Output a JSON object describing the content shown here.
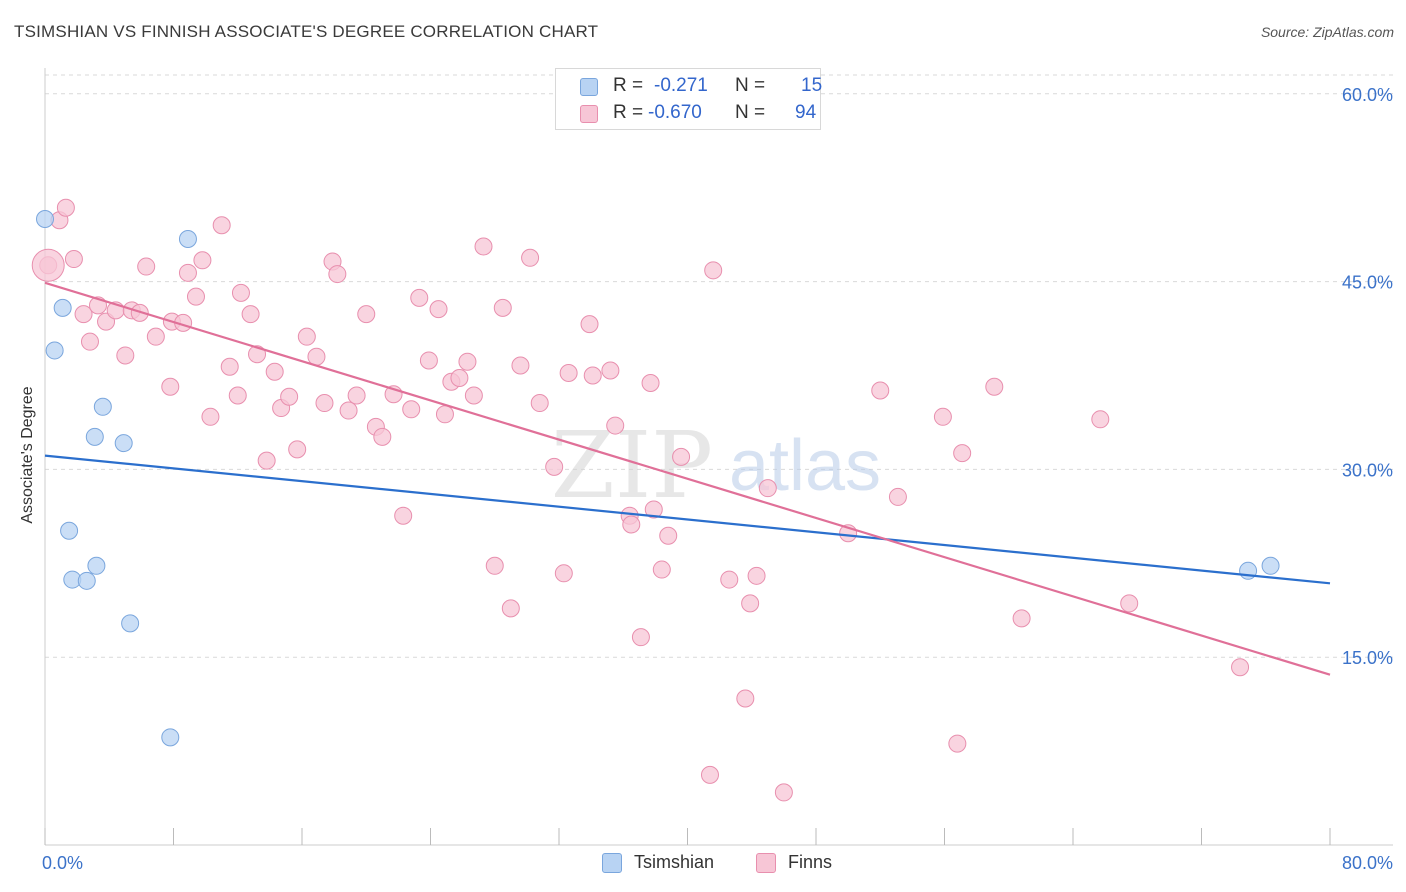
{
  "title": "TSIMSHIAN VS FINNISH ASSOCIATE'S DEGREE CORRELATION CHART",
  "source": "Source: ZipAtlas.com",
  "watermark": {
    "zip": "ZIP",
    "atlas": "atlas"
  },
  "colors": {
    "tsimshian_fill": "#b8d3f3",
    "tsimshian_stroke": "#7aa6dd",
    "tsimshian_line": "#2b6fcd",
    "finns_fill": "#f7c6d6",
    "finns_stroke": "#e88fae",
    "finns_line": "#e07098",
    "tick_label": "#3b72c9",
    "grid": "#d9d9d9"
  },
  "legend": {
    "rows": [
      {
        "r_label": "R =",
        "r_value": "-0.271",
        "n_label": "N =",
        "n_value": "15"
      },
      {
        "r_label": "R =",
        "r_value": "-0.670",
        "n_label": "N =",
        "n_value": "94"
      }
    ]
  },
  "bottom_legend": [
    "Tsimshian",
    "Finns"
  ],
  "chart_data": {
    "type": "scatter",
    "title": "TSIMSHIAN VS FINNISH ASSOCIATE'S DEGREE CORRELATION CHART",
    "ylabel": "Associate's Degree",
    "xlabel": "",
    "xlim": [
      0,
      80
    ],
    "ylim": [
      0,
      61.5
    ],
    "x_tick_labels": [
      "0.0%",
      "80.0%"
    ],
    "y_ticks": [
      15,
      30,
      45,
      60
    ],
    "y_tick_labels": [
      "15.0%",
      "30.0%",
      "45.0%",
      "60.0%"
    ],
    "grid": "horizontal dashed",
    "legend_position": "top-center",
    "series": [
      {
        "name": "Tsimshian",
        "r": -0.271,
        "n": 15,
        "trend": [
          [
            0,
            31.1
          ],
          [
            80,
            20.9
          ]
        ],
        "points": [
          [
            0.0,
            50.0
          ],
          [
            1.1,
            42.9
          ],
          [
            0.6,
            39.5
          ],
          [
            8.9,
            48.4
          ],
          [
            3.6,
            35.0
          ],
          [
            3.1,
            32.6
          ],
          [
            4.9,
            32.1
          ],
          [
            1.5,
            25.1
          ],
          [
            3.2,
            22.3
          ],
          [
            1.7,
            21.2
          ],
          [
            2.6,
            21.1
          ],
          [
            5.3,
            17.7
          ],
          [
            7.8,
            8.6
          ],
          [
            74.9,
            21.9
          ],
          [
            76.3,
            22.3
          ]
        ]
      },
      {
        "name": "Finns",
        "r": -0.67,
        "n": 94,
        "trend": [
          [
            0,
            44.9
          ],
          [
            80,
            13.6
          ]
        ],
        "points": [
          [
            0.2,
            46.3
          ],
          [
            0.9,
            49.9
          ],
          [
            1.3,
            50.9
          ],
          [
            1.8,
            46.8
          ],
          [
            2.4,
            42.4
          ],
          [
            2.8,
            40.2
          ],
          [
            3.3,
            43.1
          ],
          [
            3.8,
            41.8
          ],
          [
            4.4,
            42.7
          ],
          [
            5.0,
            39.1
          ],
          [
            5.4,
            42.7
          ],
          [
            5.9,
            42.5
          ],
          [
            6.3,
            46.2
          ],
          [
            6.9,
            40.6
          ],
          [
            7.8,
            36.6
          ],
          [
            7.9,
            41.8
          ],
          [
            8.6,
            41.7
          ],
          [
            8.9,
            45.7
          ],
          [
            9.4,
            43.8
          ],
          [
            9.8,
            46.7
          ],
          [
            10.3,
            34.2
          ],
          [
            11.0,
            49.5
          ],
          [
            11.5,
            38.2
          ],
          [
            12.0,
            35.9
          ],
          [
            12.2,
            44.1
          ],
          [
            12.8,
            42.4
          ],
          [
            13.2,
            39.2
          ],
          [
            13.8,
            30.7
          ],
          [
            14.3,
            37.8
          ],
          [
            14.7,
            34.9
          ],
          [
            15.2,
            35.8
          ],
          [
            15.7,
            31.6
          ],
          [
            16.3,
            40.6
          ],
          [
            16.9,
            39.0
          ],
          [
            17.4,
            35.3
          ],
          [
            17.9,
            46.6
          ],
          [
            18.2,
            45.6
          ],
          [
            18.9,
            34.7
          ],
          [
            19.4,
            35.9
          ],
          [
            20.0,
            42.4
          ],
          [
            20.6,
            33.4
          ],
          [
            21.0,
            32.6
          ],
          [
            21.7,
            36.0
          ],
          [
            22.3,
            26.3
          ],
          [
            22.8,
            34.8
          ],
          [
            23.3,
            43.7
          ],
          [
            23.9,
            38.7
          ],
          [
            24.5,
            42.8
          ],
          [
            24.9,
            34.4
          ],
          [
            25.3,
            37.0
          ],
          [
            25.8,
            37.3
          ],
          [
            26.3,
            38.6
          ],
          [
            26.7,
            35.9
          ],
          [
            27.3,
            47.8
          ],
          [
            28.0,
            22.3
          ],
          [
            28.5,
            42.9
          ],
          [
            29.0,
            18.9
          ],
          [
            29.6,
            38.3
          ],
          [
            30.2,
            46.9
          ],
          [
            30.8,
            35.3
          ],
          [
            31.7,
            30.2
          ],
          [
            32.3,
            21.7
          ],
          [
            32.6,
            37.7
          ],
          [
            33.9,
            41.6
          ],
          [
            34.1,
            37.5
          ],
          [
            35.2,
            37.9
          ],
          [
            35.5,
            33.5
          ],
          [
            36.4,
            26.3
          ],
          [
            36.5,
            25.6
          ],
          [
            37.1,
            16.6
          ],
          [
            37.7,
            36.9
          ],
          [
            37.9,
            26.8
          ],
          [
            38.4,
            22.0
          ],
          [
            38.8,
            24.7
          ],
          [
            39.6,
            31.0
          ],
          [
            41.4,
            5.6
          ],
          [
            41.6,
            45.9
          ],
          [
            42.6,
            21.2
          ],
          [
            43.6,
            11.7
          ],
          [
            43.9,
            19.3
          ],
          [
            44.3,
            21.5
          ],
          [
            45.0,
            28.5
          ],
          [
            46.0,
            4.2
          ],
          [
            50.0,
            24.9
          ],
          [
            52.0,
            36.3
          ],
          [
            53.1,
            27.8
          ],
          [
            55.9,
            34.2
          ],
          [
            56.8,
            8.1
          ],
          [
            57.1,
            31.3
          ],
          [
            59.1,
            36.6
          ],
          [
            60.8,
            18.1
          ],
          [
            65.7,
            34.0
          ],
          [
            67.5,
            19.3
          ],
          [
            74.4,
            14.2
          ]
        ]
      }
    ]
  }
}
